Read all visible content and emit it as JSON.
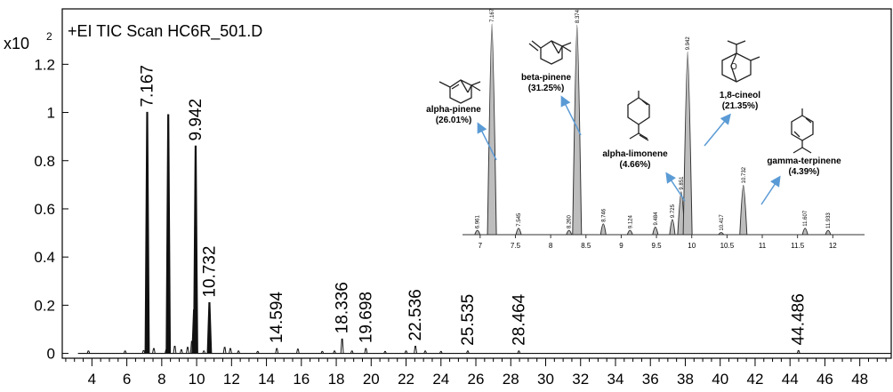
{
  "chart_data": [
    {
      "type": "line",
      "title": "+EI TIC Scan HC6R_501.D",
      "y_multiplier": "x10",
      "y_multiplier_exp": "2",
      "xlabel": "",
      "ylabel": "",
      "xlim": [
        2.3,
        49.8
      ],
      "ylim": [
        -0.02,
        1.43
      ],
      "x_ticks": [
        4,
        6,
        8,
        10,
        12,
        14,
        16,
        18,
        20,
        22,
        24,
        26,
        28,
        30,
        32,
        34,
        36,
        38,
        40,
        42,
        44,
        46,
        48
      ],
      "y_ticks": [
        0,
        0.2,
        0.4,
        0.6,
        0.8,
        1,
        1.2
      ],
      "y_tick_labels": [
        "0",
        "0.2",
        "0.4",
        "0.6",
        "0.8",
        "1",
        "1.2"
      ],
      "baseline_start": 3.2,
      "peaks": [
        {
          "x": 3.8,
          "y": 0.01
        },
        {
          "x": 5.9,
          "y": 0.01
        },
        {
          "x": 6.961,
          "y": 0.012
        },
        {
          "x": 7.167,
          "y": 1.0,
          "label": "7.167"
        },
        {
          "x": 7.545,
          "y": 0.02
        },
        {
          "x": 8.26,
          "y": 0.015
        },
        {
          "x": 8.374,
          "y": 0.99
        },
        {
          "x": 8.746,
          "y": 0.03
        },
        {
          "x": 9.124,
          "y": 0.015
        },
        {
          "x": 9.484,
          "y": 0.025
        },
        {
          "x": 9.725,
          "y": 0.05
        },
        {
          "x": 9.851,
          "y": 0.18
        },
        {
          "x": 9.942,
          "y": 0.86,
          "label": "9.942"
        },
        {
          "x": 10.417,
          "y": 0.01
        },
        {
          "x": 10.732,
          "y": 0.21,
          "label": "10.732"
        },
        {
          "x": 11.607,
          "y": 0.025
        },
        {
          "x": 11.933,
          "y": 0.02
        },
        {
          "x": 12.4,
          "y": 0.01
        },
        {
          "x": 13.5,
          "y": 0.008
        },
        {
          "x": 14.594,
          "y": 0.02,
          "label": "14.594"
        },
        {
          "x": 15.8,
          "y": 0.018
        },
        {
          "x": 17.2,
          "y": 0.008
        },
        {
          "x": 17.9,
          "y": 0.01
        },
        {
          "x": 18.336,
          "y": 0.06,
          "label": "18.336"
        },
        {
          "x": 18.9,
          "y": 0.01
        },
        {
          "x": 19.698,
          "y": 0.02,
          "label": "19.698"
        },
        {
          "x": 20.8,
          "y": 0.008
        },
        {
          "x": 22.0,
          "y": 0.01
        },
        {
          "x": 22.536,
          "y": 0.03,
          "label": "22.536"
        },
        {
          "x": 23.1,
          "y": 0.01
        },
        {
          "x": 24.0,
          "y": 0.008
        },
        {
          "x": 25.535,
          "y": 0.01,
          "label": "25.535"
        },
        {
          "x": 28.464,
          "y": 0.01,
          "label": "28.464"
        },
        {
          "x": 44.486,
          "y": 0.012,
          "label": "44.486"
        }
      ]
    },
    {
      "type": "line",
      "title": "",
      "xlabel": "",
      "ylabel": "",
      "xlim": [
        6.75,
        12.45
      ],
      "ylim": [
        0,
        1
      ],
      "x_ticks": [
        7,
        7.5,
        8,
        8.5,
        9,
        9.5,
        10,
        10.5,
        11,
        11.5,
        12
      ],
      "x_tick_labels": [
        "7",
        "7.5",
        "8",
        "8.5",
        "9",
        "9.5",
        "10",
        "10.5",
        "11",
        "11.5",
        "12"
      ],
      "peaks": [
        {
          "x": 6.961,
          "y": 0.02,
          "label": "6.961"
        },
        {
          "x": 7.167,
          "y": 0.98,
          "label": "7.167"
        },
        {
          "x": 7.545,
          "y": 0.03,
          "label": "7.545"
        },
        {
          "x": 8.26,
          "y": 0.02,
          "label": "8.260"
        },
        {
          "x": 8.374,
          "y": 0.975,
          "label": "8.374"
        },
        {
          "x": 8.746,
          "y": 0.05,
          "label": "8.746"
        },
        {
          "x": 9.124,
          "y": 0.02,
          "label": "9.124"
        },
        {
          "x": 9.484,
          "y": 0.035,
          "label": "9.484"
        },
        {
          "x": 9.725,
          "y": 0.07,
          "label": "9.725"
        },
        {
          "x": 9.851,
          "y": 0.2,
          "label": "9.851"
        },
        {
          "x": 9.942,
          "y": 0.85,
          "label": "9.942"
        },
        {
          "x": 10.417,
          "y": 0.01,
          "label": "10.417"
        },
        {
          "x": 10.732,
          "y": 0.23,
          "label": "10.732"
        },
        {
          "x": 11.607,
          "y": 0.03,
          "label": "11.607"
        },
        {
          "x": 11.933,
          "y": 0.02,
          "label": "11.933"
        }
      ],
      "annotations": [
        {
          "name": "alpha-pinene",
          "percent": "(26.01%)",
          "peak_x": 7.167,
          "icon": "alpha-pinene-structure"
        },
        {
          "name": "beta-pinene",
          "percent": "(31.25%)",
          "peak_x": 8.374,
          "icon": "beta-pinene-structure"
        },
        {
          "name": "alpha-limonene",
          "percent": "(4.66%)",
          "peak_x": 9.851,
          "icon": "limonene-structure"
        },
        {
          "name": "1,8-cineol",
          "percent": "(21.35%)",
          "peak_x": 9.942,
          "icon": "cineol-structure"
        },
        {
          "name": "gamma-terpinene",
          "percent": "(4.39%)",
          "peak_x": 10.732,
          "icon": "terpinene-structure"
        }
      ],
      "colors": {
        "fill": "#bdbdbd",
        "stroke": "#333333",
        "arrow": "#5b9bd5"
      }
    }
  ]
}
